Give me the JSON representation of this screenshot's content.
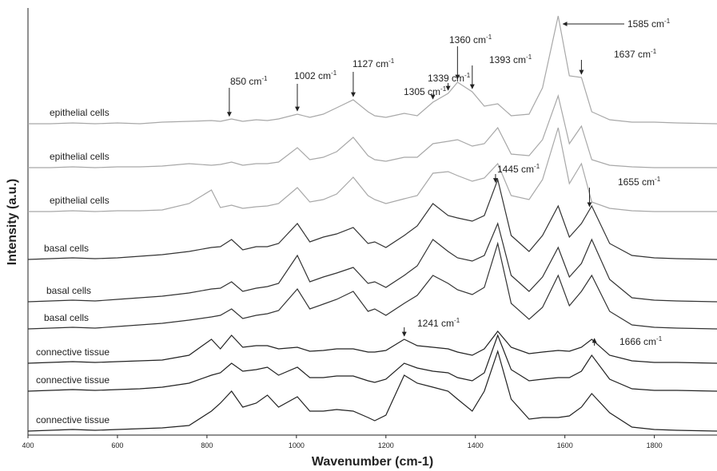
{
  "chart_data": {
    "type": "line",
    "x_label": "Wavenumber (cm-1)",
    "y_label": "Intensity (a.u.)",
    "xlim": [
      400,
      1940
    ],
    "ylim": [
      0,
      535
    ],
    "xticks": [
      400,
      600,
      800,
      1000,
      1200,
      1400,
      1600,
      1800
    ],
    "x": [
      400,
      450,
      500,
      550,
      600,
      650,
      700,
      760,
      810,
      830,
      855,
      880,
      910,
      935,
      960,
      1002,
      1030,
      1060,
      1090,
      1127,
      1160,
      1175,
      1200,
      1241,
      1270,
      1305,
      1339,
      1360,
      1393,
      1420,
      1450,
      1480,
      1520,
      1550,
      1585,
      1610,
      1637,
      1660,
      1700,
      1750,
      1800,
      1850,
      1940
    ],
    "series": [
      {
        "name": "epithelial cells",
        "color": "#a8a8a8",
        "values": [
          390,
          390,
          391,
          390,
          391,
          390,
          392,
          393,
          394,
          393,
          396,
          393,
          395,
          394,
          396,
          402,
          398,
          402,
          410,
          420,
          405,
          400,
          398,
          403,
          400,
          417,
          428,
          442,
          430,
          412,
          415,
          400,
          402,
          435,
          525,
          450,
          448,
          405,
          395,
          392,
          392,
          391,
          390
        ]
      },
      {
        "name": "epithelial cells",
        "color": "#a8a8a8",
        "values": [
          335,
          335,
          336,
          335,
          336,
          336,
          337,
          340,
          338,
          339,
          342,
          338,
          340,
          340,
          342,
          360,
          345,
          348,
          355,
          373,
          350,
          345,
          343,
          348,
          348,
          365,
          368,
          370,
          362,
          365,
          385,
          352,
          350,
          370,
          425,
          365,
          387,
          345,
          338,
          336,
          335,
          335,
          335
        ]
      },
      {
        "name": "epithelial cells",
        "color": "#a8a8a8",
        "values": [
          280,
          280,
          281,
          280,
          281,
          281,
          282,
          290,
          307,
          285,
          288,
          284,
          286,
          287,
          290,
          310,
          292,
          295,
          302,
          323,
          300,
          295,
          290,
          296,
          300,
          328,
          330,
          325,
          318,
          322,
          340,
          300,
          295,
          320,
          385,
          315,
          340,
          292,
          284,
          281,
          280,
          280,
          280
        ]
      },
      {
        "name": "basal cells",
        "color": "#333333",
        "values": [
          220,
          221,
          222,
          221,
          222,
          224,
          226,
          230,
          235,
          236,
          245,
          232,
          236,
          236,
          240,
          265,
          242,
          248,
          252,
          260,
          240,
          242,
          235,
          250,
          262,
          290,
          275,
          272,
          268,
          275,
          320,
          250,
          230,
          250,
          287,
          248,
          265,
          287,
          240,
          225,
          222,
          221,
          220
        ]
      },
      {
        "name": "basal cells",
        "color": "#333333",
        "values": [
          167,
          168,
          169,
          168,
          170,
          172,
          174,
          178,
          183,
          184,
          192,
          180,
          184,
          186,
          190,
          225,
          192,
          198,
          203,
          210,
          190,
          192,
          185,
          200,
          212,
          245,
          230,
          222,
          218,
          225,
          265,
          200,
          180,
          198,
          235,
          198,
          215,
          245,
          195,
          172,
          169,
          168,
          167
        ]
      },
      {
        "name": "basal cells",
        "color": "#333333",
        "values": [
          133,
          134,
          135,
          134,
          136,
          138,
          140,
          144,
          148,
          150,
          158,
          146,
          150,
          152,
          156,
          183,
          158,
          164,
          170,
          180,
          155,
          158,
          150,
          165,
          175,
          200,
          190,
          182,
          176,
          185,
          240,
          165,
          145,
          160,
          200,
          162,
          180,
          200,
          155,
          138,
          135,
          134,
          133
        ]
      },
      {
        "name": "connective tissue",
        "color": "#222222",
        "values": [
          90,
          91,
          92,
          91,
          92,
          93,
          94,
          100,
          120,
          108,
          125,
          110,
          112,
          112,
          108,
          110,
          105,
          106,
          108,
          108,
          104,
          104,
          106,
          120,
          112,
          110,
          108,
          104,
          100,
          108,
          130,
          110,
          102,
          104,
          106,
          105,
          110,
          120,
          100,
          93,
          91,
          91,
          90
        ]
      },
      {
        "name": "connective tissue",
        "color": "#222222",
        "values": [
          55,
          56,
          57,
          56,
          57,
          58,
          60,
          65,
          75,
          78,
          90,
          80,
          82,
          85,
          75,
          85,
          72,
          72,
          74,
          74,
          68,
          66,
          70,
          90,
          84,
          80,
          78,
          72,
          68,
          78,
          125,
          82,
          68,
          70,
          72,
          72,
          80,
          100,
          70,
          58,
          56,
          56,
          55
        ]
      },
      {
        "name": "connective tissue",
        "color": "#222222",
        "values": [
          5,
          6,
          7,
          6,
          7,
          8,
          9,
          12,
          30,
          40,
          55,
          35,
          40,
          50,
          35,
          48,
          30,
          30,
          32,
          30,
          22,
          18,
          25,
          75,
          65,
          60,
          55,
          45,
          30,
          55,
          105,
          45,
          20,
          22,
          22,
          24,
          35,
          52,
          28,
          10,
          7,
          6,
          5
        ]
      }
    ],
    "annotations": [
      {
        "x": 850,
        "text": "850 cm",
        "sup": "-1"
      },
      {
        "x": 1002,
        "text": "1002 cm",
        "sup": "-1"
      },
      {
        "x": 1127,
        "text": "1127 cm",
        "sup": "-1"
      },
      {
        "x": 1305,
        "text": "1305 cm",
        "sup": "-1"
      },
      {
        "x": 1339,
        "text": "1339 cm",
        "sup": "-1"
      },
      {
        "x": 1360,
        "text": "1360 cm",
        "sup": "-1"
      },
      {
        "x": 1393,
        "text": "1393 cm",
        "sup": "-1"
      },
      {
        "x": 1585,
        "text": "1585 cm",
        "sup": "-1"
      },
      {
        "x": 1637,
        "text": "1637 cm",
        "sup": "-1"
      },
      {
        "x": 1445,
        "text": "1445 cm",
        "sup": "-1"
      },
      {
        "x": 1655,
        "text": "1655 cm",
        "sup": "-1"
      },
      {
        "x": 1241,
        "text": "1241 cm",
        "sup": "-1"
      },
      {
        "x": 1666,
        "text": "1666 cm",
        "sup": "-1"
      }
    ]
  }
}
